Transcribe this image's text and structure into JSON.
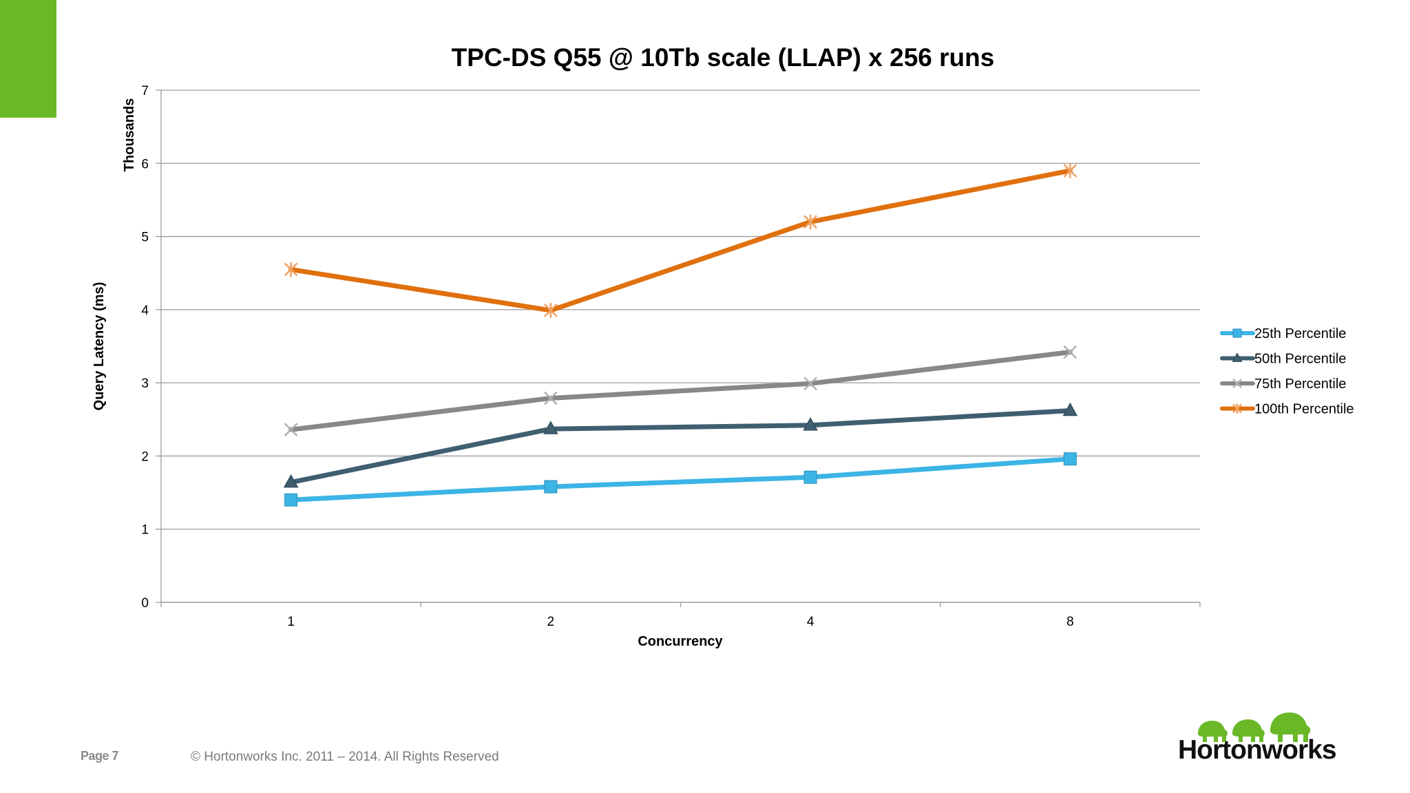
{
  "slide": {
    "page_label": "Page 7",
    "copyright": "© Hortonworks Inc. 2011 – 2014. All Rights Reserved",
    "logo_text": "Hortonworks",
    "accent_color": "#6ab828"
  },
  "chart_data": {
    "type": "line",
    "title": "TPC-DS Q55 @ 10Tb scale (LLAP) x 256 runs",
    "xlabel": "Concurrency",
    "ylabel": "Query Latency (ms)",
    "ylabel_units": "Thousands",
    "categories": [
      "1",
      "2",
      "4",
      "8"
    ],
    "ylim": [
      0,
      7
    ],
    "yticks": [
      "0",
      "1",
      "2",
      "3",
      "4",
      "5",
      "6",
      "7"
    ],
    "grid": true,
    "legend_position": "right",
    "series": [
      {
        "name": "25th Percentile",
        "values": [
          1.4,
          1.58,
          1.71,
          1.96
        ],
        "color": "#3cb4e5",
        "marker": "square"
      },
      {
        "name": "50th Percentile",
        "values": [
          1.64,
          2.37,
          2.42,
          2.62
        ],
        "color": "#3f5f71",
        "marker": "triangle"
      },
      {
        "name": "75th Percentile",
        "values": [
          2.36,
          2.79,
          2.99,
          3.42
        ],
        "color": "#888888",
        "marker": "x"
      },
      {
        "name": "100th Percentile",
        "values": [
          4.55,
          3.99,
          5.2,
          5.9
        ],
        "color": "#e0700e",
        "marker": "star"
      }
    ]
  }
}
